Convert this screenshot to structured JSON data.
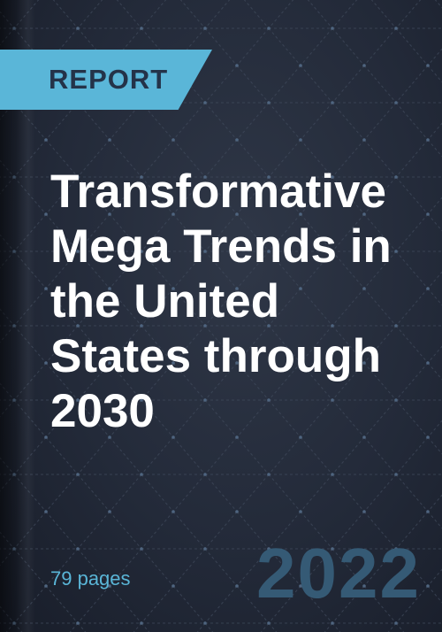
{
  "label": "REPORT",
  "title_lines": [
    "Transformative",
    "Mega Trends in",
    "the United",
    "States through",
    "2030"
  ],
  "pages": "79 pages",
  "year": "2022",
  "colors": {
    "accent": "#5ab6d8",
    "background": "#232a39",
    "year": "#355a75",
    "label_text": "#243349"
  }
}
